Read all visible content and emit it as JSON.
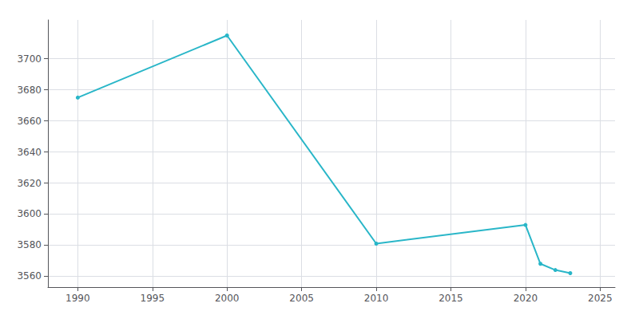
{
  "chart_data": {
    "type": "line",
    "x": [
      1990,
      2000,
      2010,
      2020,
      2021,
      2022,
      2023
    ],
    "values": [
      3675,
      3715,
      3581,
      3593,
      3568,
      3564,
      3562
    ],
    "color": "#29b6c8",
    "marker": "circle",
    "xlim": [
      1988,
      2026
    ],
    "xticks": [
      1990,
      1995,
      2000,
      2005,
      2010,
      2015,
      2020,
      2025
    ],
    "ylim": [
      3553,
      3725
    ],
    "yticks": [
      3560,
      3580,
      3600,
      3620,
      3640,
      3660,
      3680,
      3700
    ],
    "grid": true
  }
}
